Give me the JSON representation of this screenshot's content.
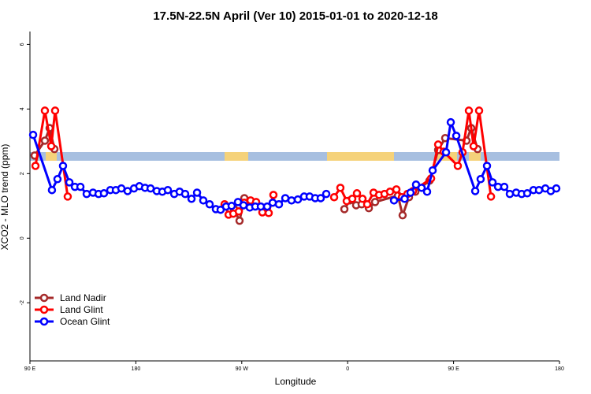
{
  "chart_data": {
    "type": "line",
    "title": "17.5N-22.5N April (Ver 10)   2015-01-01 to 2020-12-18",
    "x_label": "Longitude",
    "y_label": "XCO2 - MLO trend (ppm)",
    "xlim": [
      90,
      540
    ],
    "ylim": [
      -3.8,
      6.4
    ],
    "xticks": [
      {
        "value": 90,
        "label": "90 E"
      },
      180,
      {
        "value": 270,
        "label": "90 W"
      },
      {
        "value": 360,
        "label": "0"
      },
      {
        "value": 450,
        "label": "90 E"
      },
      {
        "value": 540,
        "label": "180"
      }
    ],
    "yticks": [
      -2,
      0,
      2,
      4,
      6
    ],
    "legend": "bottomleft",
    "series": [
      {
        "name": "Land Nadir",
        "color": "#a52a2a",
        "x": [
          94,
          102.7,
          106.7,
          110.8,
          null,
          263.4,
          268.1,
          272.2,
          277.5,
          282.9,
          288.2,
          null,
          357.2,
          361.9,
          367.2,
          371.9,
          378,
          383.3,
          402.7,
          406.7,
          412.1,
          417.5,
          429.5,
          436.9,
          442.9,
          461,
          465,
          470.4
        ],
        "values": [
          2.56,
          3.02,
          3.41,
          2.76,
          null,
          0.9,
          0.54,
          1.24,
          1.15,
          1.02,
          0.85,
          null,
          0.9,
          1.17,
          1.02,
          1.05,
          0.93,
          1.12,
          1.32,
          0.71,
          1.27,
          1.44,
          1.78,
          2.73,
          3.1,
          3.02,
          3.41,
          2.76
        ]
      },
      {
        "name": "Land Glint",
        "color": "#ff0000",
        "x": [
          94.7,
          102.7,
          108.1,
          111.4,
          122.1,
          null,
          255.4,
          258.8,
          262.8,
          267.5,
          272.2,
          277.5,
          282.2,
          287.5,
          292.9,
          296.9,
          null,
          348.5,
          353.8,
          359.2,
          363.9,
          367.9,
          372.6,
          376.6,
          382,
          386.7,
          391.3,
          396,
          401.4,
          406.1,
          410.8,
          415.5,
          430.9,
          436.9,
          441.6,
          453.6,
          457.6,
          463,
          467,
          471.7,
          481.8
        ],
        "values": [
          2.24,
          3.95,
          2.85,
          3.95,
          1.29,
          null,
          1.05,
          0.73,
          0.76,
          0.83,
          1.1,
          1.17,
          1.12,
          0.8,
          0.78,
          1.34,
          null,
          1.27,
          1.56,
          1.15,
          1.22,
          1.39,
          1.22,
          1.05,
          1.41,
          1.34,
          1.37,
          1.44,
          1.51,
          1.27,
          1.37,
          1.46,
          1.85,
          2.9,
          2.68,
          2.24,
          2.66,
          3.95,
          2.85,
          3.95,
          1.29
        ]
      },
      {
        "name": "Ocean Glint",
        "color": "#0000ff",
        "x": [
          92.7,
          108.7,
          113.4,
          118.1,
          123.5,
          128.2,
          132.9,
          138.2,
          143.6,
          148.3,
          152.9,
          158.3,
          163,
          167.7,
          173,
          178.4,
          183,
          187.8,
          192.5,
          197.8,
          202.5,
          207.2,
          212.6,
          217.2,
          221.9,
          227.3,
          232,
          237.3,
          242.7,
          248,
          252,
          256.7,
          261.4,
          266.8,
          271.5,
          276.8,
          281.5,
          286.2,
          291.6,
          296.3,
          301.6,
          307,
          312.3,
          317.7,
          323,
          327.7,
          332.4,
          337.1,
          341.8,
          null,
          399.4,
          408.4,
          413.4,
          418.1,
          422.8,
          427.5,
          432.2,
          443.6,
          447.6,
          452.3,
          468.4,
          473,
          478.4,
          483.1,
          487.8,
          493.1,
          497.8,
          503.2,
          507.9,
          512.6,
          517.9,
          522.6,
          528,
          532.6,
          537.3
        ],
        "values": [
          3.2,
          1.49,
          1.83,
          2.24,
          1.73,
          1.59,
          1.59,
          1.37,
          1.41,
          1.37,
          1.39,
          1.49,
          1.49,
          1.54,
          1.46,
          1.54,
          1.61,
          1.56,
          1.54,
          1.46,
          1.44,
          1.49,
          1.37,
          1.44,
          1.37,
          1.22,
          1.41,
          1.17,
          1.05,
          0.9,
          0.88,
          0.98,
          1.0,
          1.12,
          1.02,
          0.95,
          0.98,
          0.98,
          0.98,
          1.1,
          1.05,
          1.24,
          1.17,
          1.2,
          1.29,
          1.29,
          1.24,
          1.24,
          1.37,
          null,
          1.17,
          1.22,
          1.41,
          1.66,
          1.56,
          1.44,
          2.1,
          2.66,
          3.59,
          3.17,
          1.46,
          1.83,
          2.24,
          1.73,
          1.59,
          1.59,
          1.37,
          1.41,
          1.37,
          1.39,
          1.49,
          1.49,
          1.54,
          1.46,
          1.54
        ]
      }
    ]
  }
}
